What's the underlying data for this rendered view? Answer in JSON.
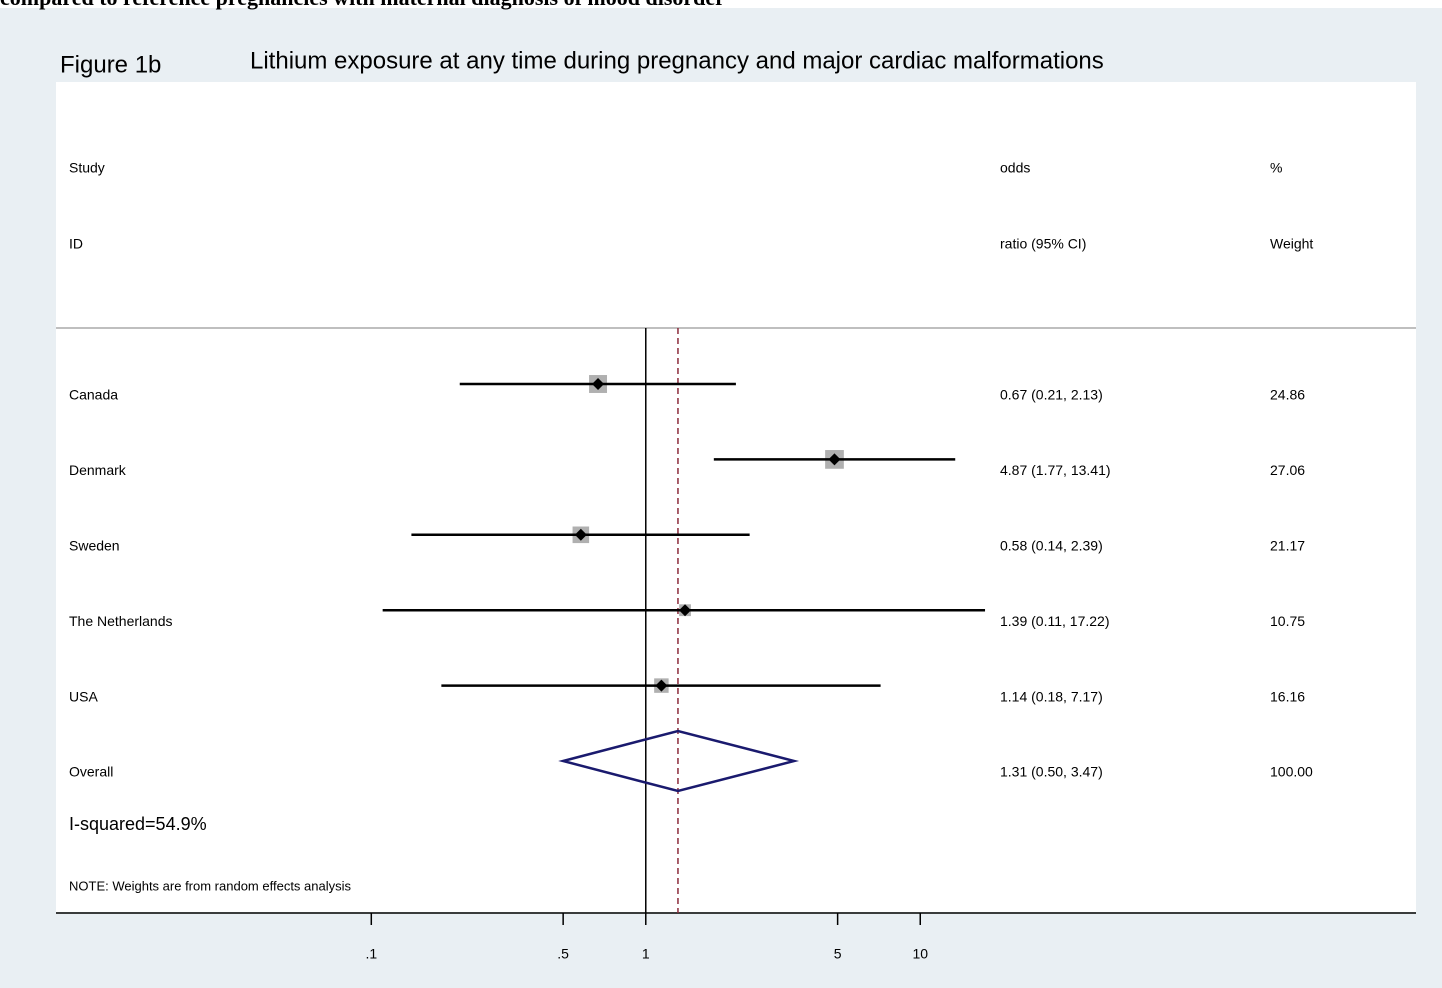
{
  "chart_data": {
    "type": "forest",
    "header_note": "compared to reference pregnancies with maternal diagnosis of mood disorder",
    "figure_label": "Figure 1b",
    "title": "Lithium exposure at any time during pregnancy and major cardiac malformations",
    "column_headers": {
      "study": [
        "Study",
        "ID"
      ],
      "estimate": [
        "odds",
        "ratio (95% CI)"
      ],
      "weight": [
        "%",
        "Weight"
      ]
    },
    "categories": [
      "Canada",
      "Denmark",
      "Sweden",
      "The Netherlands",
      "USA",
      "Overall"
    ],
    "values": [
      0.67,
      4.87,
      0.58,
      1.39,
      1.14,
      1.31
    ],
    "lower": [
      0.21,
      1.77,
      0.14,
      0.11,
      0.18,
      0.5
    ],
    "upper": [
      2.13,
      13.41,
      2.39,
      17.22,
      7.17,
      3.47
    ],
    "value_labels": [
      "0.67 (0.21, 2.13)",
      "4.87 (1.77, 13.41)",
      "0.58 (0.14, 2.39)",
      "1.39 (0.11, 17.22)",
      "1.14 (0.18, 7.17)",
      "1.31 (0.50, 3.47)"
    ],
    "weights": [
      24.86,
      27.06,
      21.17,
      10.75,
      16.16,
      100
    ],
    "weight_labels": [
      "24.86",
      "27.06",
      "21.17",
      "10.75",
      "16.16",
      "100.00"
    ],
    "heterogeneity": "I-squared=54.9%",
    "note": "NOTE: Weights are from random effects analysis",
    "xscale": "log",
    "xlim": [
      0.0071,
      640
    ],
    "xticks": [
      {
        "value": 0.1,
        "label": ".1"
      },
      {
        "value": 0.5,
        "label": ".5"
      },
      1,
      5,
      10
    ],
    "null_value": 1,
    "box_color": "#b0b0b0",
    "point_color": "#000000",
    "diamond_color": "#1a1a6e",
    "overall_line_color": "#8b2a3a"
  }
}
